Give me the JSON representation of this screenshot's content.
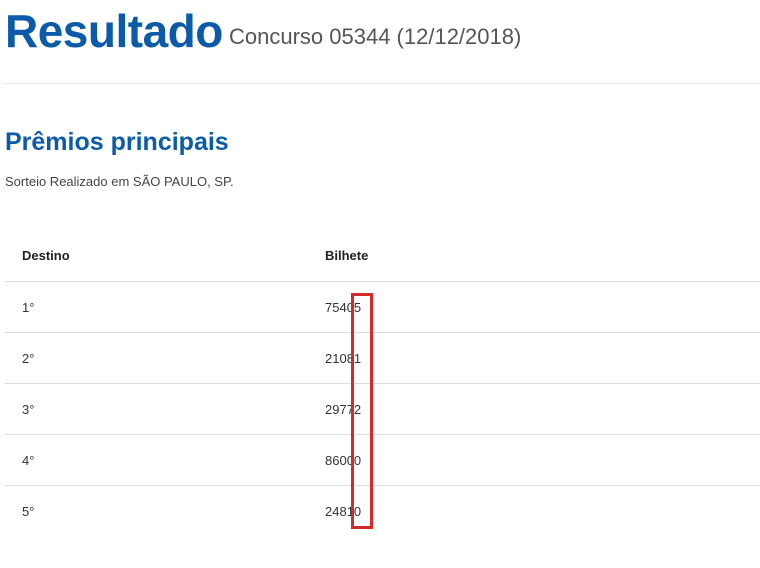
{
  "header": {
    "title": "Resultado",
    "subtitle": "Concurso 05344 (12/12/2018)"
  },
  "section": {
    "title": "Prêmios principais",
    "subtitle": "Sorteio Realizado em SÃO PAULO, SP."
  },
  "table": {
    "columns": [
      "Destino",
      "Bilhete"
    ],
    "rows": [
      [
        "1°",
        "75405"
      ],
      [
        "2°",
        "21081"
      ],
      [
        "3°",
        "29772"
      ],
      [
        "4°",
        "86000"
      ],
      [
        "5°",
        "24810"
      ]
    ]
  }
}
